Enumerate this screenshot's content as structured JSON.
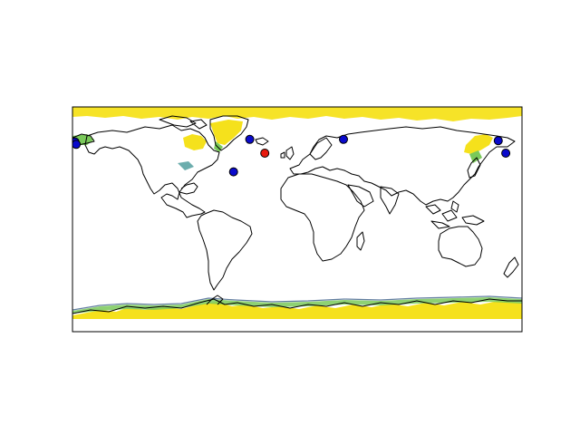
{
  "map": {
    "projection": "plate-carree",
    "extent": {
      "lon": [
        -180,
        180
      ],
      "lat": [
        -90,
        90
      ]
    },
    "background": "#ffffff",
    "coastline_color": "#000000",
    "ice_colors": {
      "high": "#f5e11c",
      "mid": "#7ac95a",
      "low": "#2e8a8a",
      "edge": "#3b5c8a"
    }
  },
  "markers": {
    "default_color": "#0a0acc",
    "highlight_color": "#e81a0e",
    "edge_color": "#000000",
    "points": [
      {
        "id": "alaska-1",
        "lon": -178,
        "lat": 62,
        "color": "#0a0acc"
      },
      {
        "id": "alaska-2",
        "lon": -177,
        "lat": 60,
        "color": "#0a0acc"
      },
      {
        "id": "greenland-sw",
        "lon": -38,
        "lat": 64,
        "color": "#0a0acc"
      },
      {
        "id": "north-atlantic",
        "lon": -51,
        "lat": 38,
        "color": "#0a0acc"
      },
      {
        "id": "north-atlantic-red",
        "lon": -26,
        "lat": 53,
        "color": "#e81a0e"
      },
      {
        "id": "barents-sea",
        "lon": 37,
        "lat": 64,
        "color": "#0a0acc"
      },
      {
        "id": "kamchatka",
        "lon": 161,
        "lat": 63,
        "color": "#0a0acc"
      },
      {
        "id": "bering",
        "lon": 167,
        "lat": 53,
        "color": "#0a0acc"
      }
    ]
  }
}
